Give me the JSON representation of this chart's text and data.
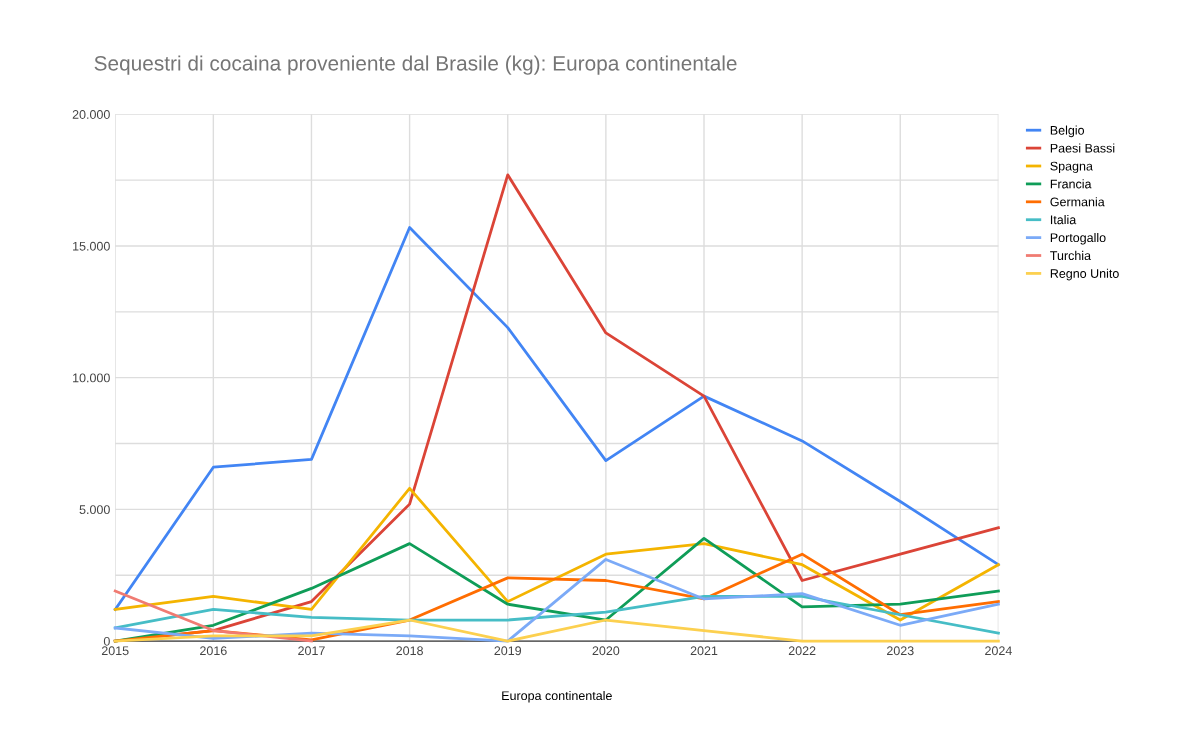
{
  "chart_data": {
    "type": "line",
    "title": "Sequestri di cocaina proveniente dal Brasile (kg): Europa continentale",
    "xlabel": "Europa continentale",
    "x": [
      2015,
      2016,
      2017,
      2018,
      2019,
      2020,
      2021,
      2022,
      2023,
      2024
    ],
    "xlim": [
      2015,
      2024
    ],
    "xticks": [
      2015,
      2016,
      2017,
      2018,
      2019,
      2020,
      2021,
      2022,
      2023,
      2024
    ],
    "ylim": [
      0,
      20000
    ],
    "yticks": [
      {
        "value": 0,
        "label": "0"
      },
      {
        "value": 2500,
        "label": null
      },
      {
        "value": 5000,
        "label": "5.000"
      },
      {
        "value": 7500,
        "label": null
      },
      {
        "value": 10000,
        "label": "10.000"
      },
      {
        "value": 12500,
        "label": null
      },
      {
        "value": 15000,
        "label": "15.000"
      },
      {
        "value": 17500,
        "label": null
      },
      {
        "value": 20000,
        "label": "20.000"
      }
    ],
    "grid": true,
    "legend": "top right",
    "marker": "none",
    "line_style": "solid",
    "series": [
      {
        "name": "Belgio",
        "color": "#4285f4",
        "values": [
          1200,
          6600,
          6900,
          15700,
          11900,
          6850,
          9300,
          7600,
          5300,
          2900
        ]
      },
      {
        "name": "Paesi Bassi",
        "color": "#db4437",
        "values": [
          0,
          400,
          1500,
          5200,
          17700,
          11700,
          9300,
          2300,
          3300,
          4300
        ]
      },
      {
        "name": "Spagna",
        "color": "#f4b400",
        "values": [
          1200,
          1700,
          1200,
          5800,
          1500,
          3300,
          3700,
          2900,
          800,
          2900
        ]
      },
      {
        "name": "Francia",
        "color": "#0f9d58",
        "values": [
          0,
          600,
          2000,
          3700,
          1400,
          800,
          3900,
          1300,
          1400,
          1900
        ]
      },
      {
        "name": "Germania",
        "color": "#ff6d01",
        "values": [
          0,
          400,
          50,
          800,
          2400,
          2300,
          1600,
          3300,
          1000,
          1500
        ]
      },
      {
        "name": "Italia",
        "color": "#46bdc6",
        "values": [
          500,
          1200,
          900,
          800,
          800,
          1100,
          1700,
          1700,
          1000,
          300
        ]
      },
      {
        "name": "Portogallo",
        "color": "#7baaf7",
        "values": [
          500,
          100,
          300,
          200,
          0,
          3100,
          1600,
          1800,
          600,
          1400
        ]
      },
      {
        "name": "Turchia",
        "color": "#f07b72",
        "values": [
          1900,
          400,
          0,
          null,
          null,
          null,
          null,
          null,
          null,
          null
        ]
      },
      {
        "name": "Regno Unito",
        "color": "#fcd04f",
        "values": [
          0,
          200,
          200,
          800,
          0,
          800,
          400,
          0,
          0,
          0
        ]
      }
    ]
  }
}
